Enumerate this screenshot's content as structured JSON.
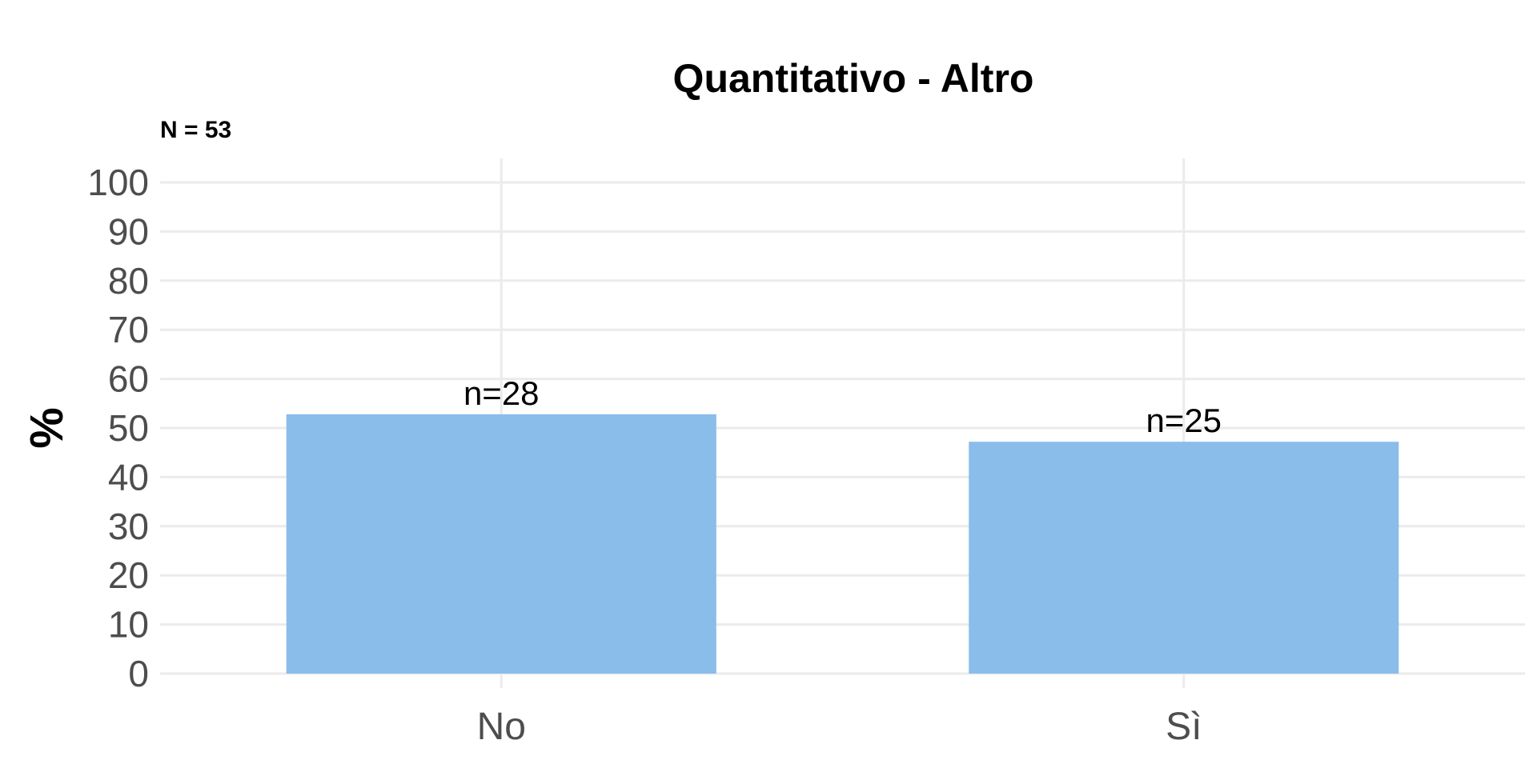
{
  "chart_data": {
    "type": "bar",
    "title": "Quantitativo - Altro",
    "subtitle": "N = 53",
    "xlabel": "",
    "ylabel": "%",
    "ylim": [
      0,
      100
    ],
    "yticks": [
      "0",
      "10",
      "20",
      "30",
      "40",
      "50",
      "60",
      "70",
      "80",
      "90",
      "100"
    ],
    "categories": [
      "No",
      "Sì"
    ],
    "values": [
      52.8,
      47.2
    ],
    "bar_labels": [
      "n=28",
      "n=25"
    ],
    "bar_color": "#8abde9",
    "grid": true
  }
}
